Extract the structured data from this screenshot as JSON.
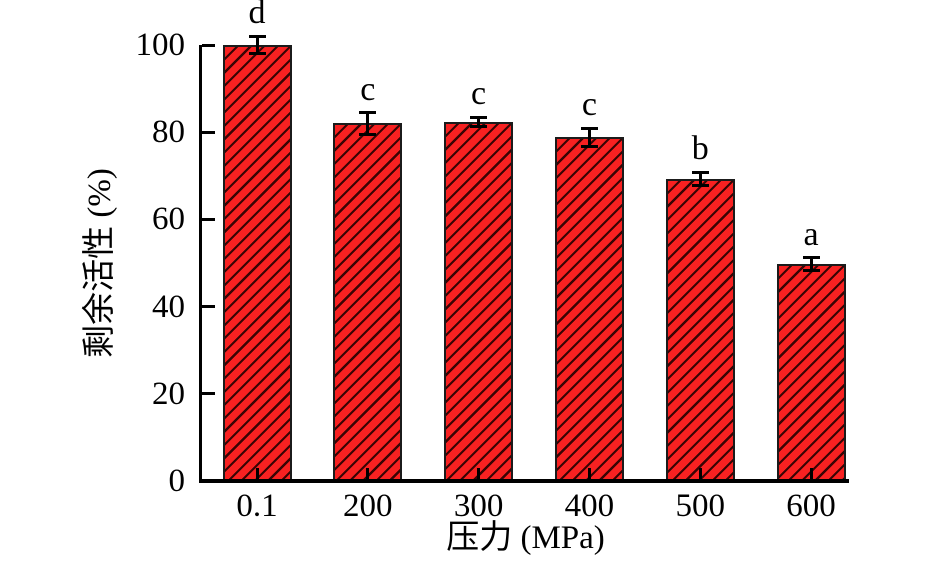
{
  "chart_data": {
    "type": "bar",
    "xlabel": "压力 (MPa)",
    "ylabel": "剩余活性 (%)",
    "categories": [
      "0.1",
      "200",
      "300",
      "400",
      "500",
      "600"
    ],
    "values": [
      100,
      82,
      82.3,
      78.8,
      69.3,
      49.7
    ],
    "errors": [
      2,
      2.5,
      1.1,
      2.1,
      1.5,
      1.5
    ],
    "letters": [
      "d",
      "c",
      "c",
      "c",
      "b",
      "a"
    ],
    "ylim": [
      0,
      100
    ],
    "yticks": [
      0,
      20,
      40,
      60,
      80,
      100
    ],
    "grid": false,
    "legend": null,
    "bar_color": "#f82121",
    "hatch": "diagonal-forward",
    "hatch_color": "#3a0404",
    "bar_border_color": "#1b1b1b",
    "axis_color": "#000000"
  }
}
